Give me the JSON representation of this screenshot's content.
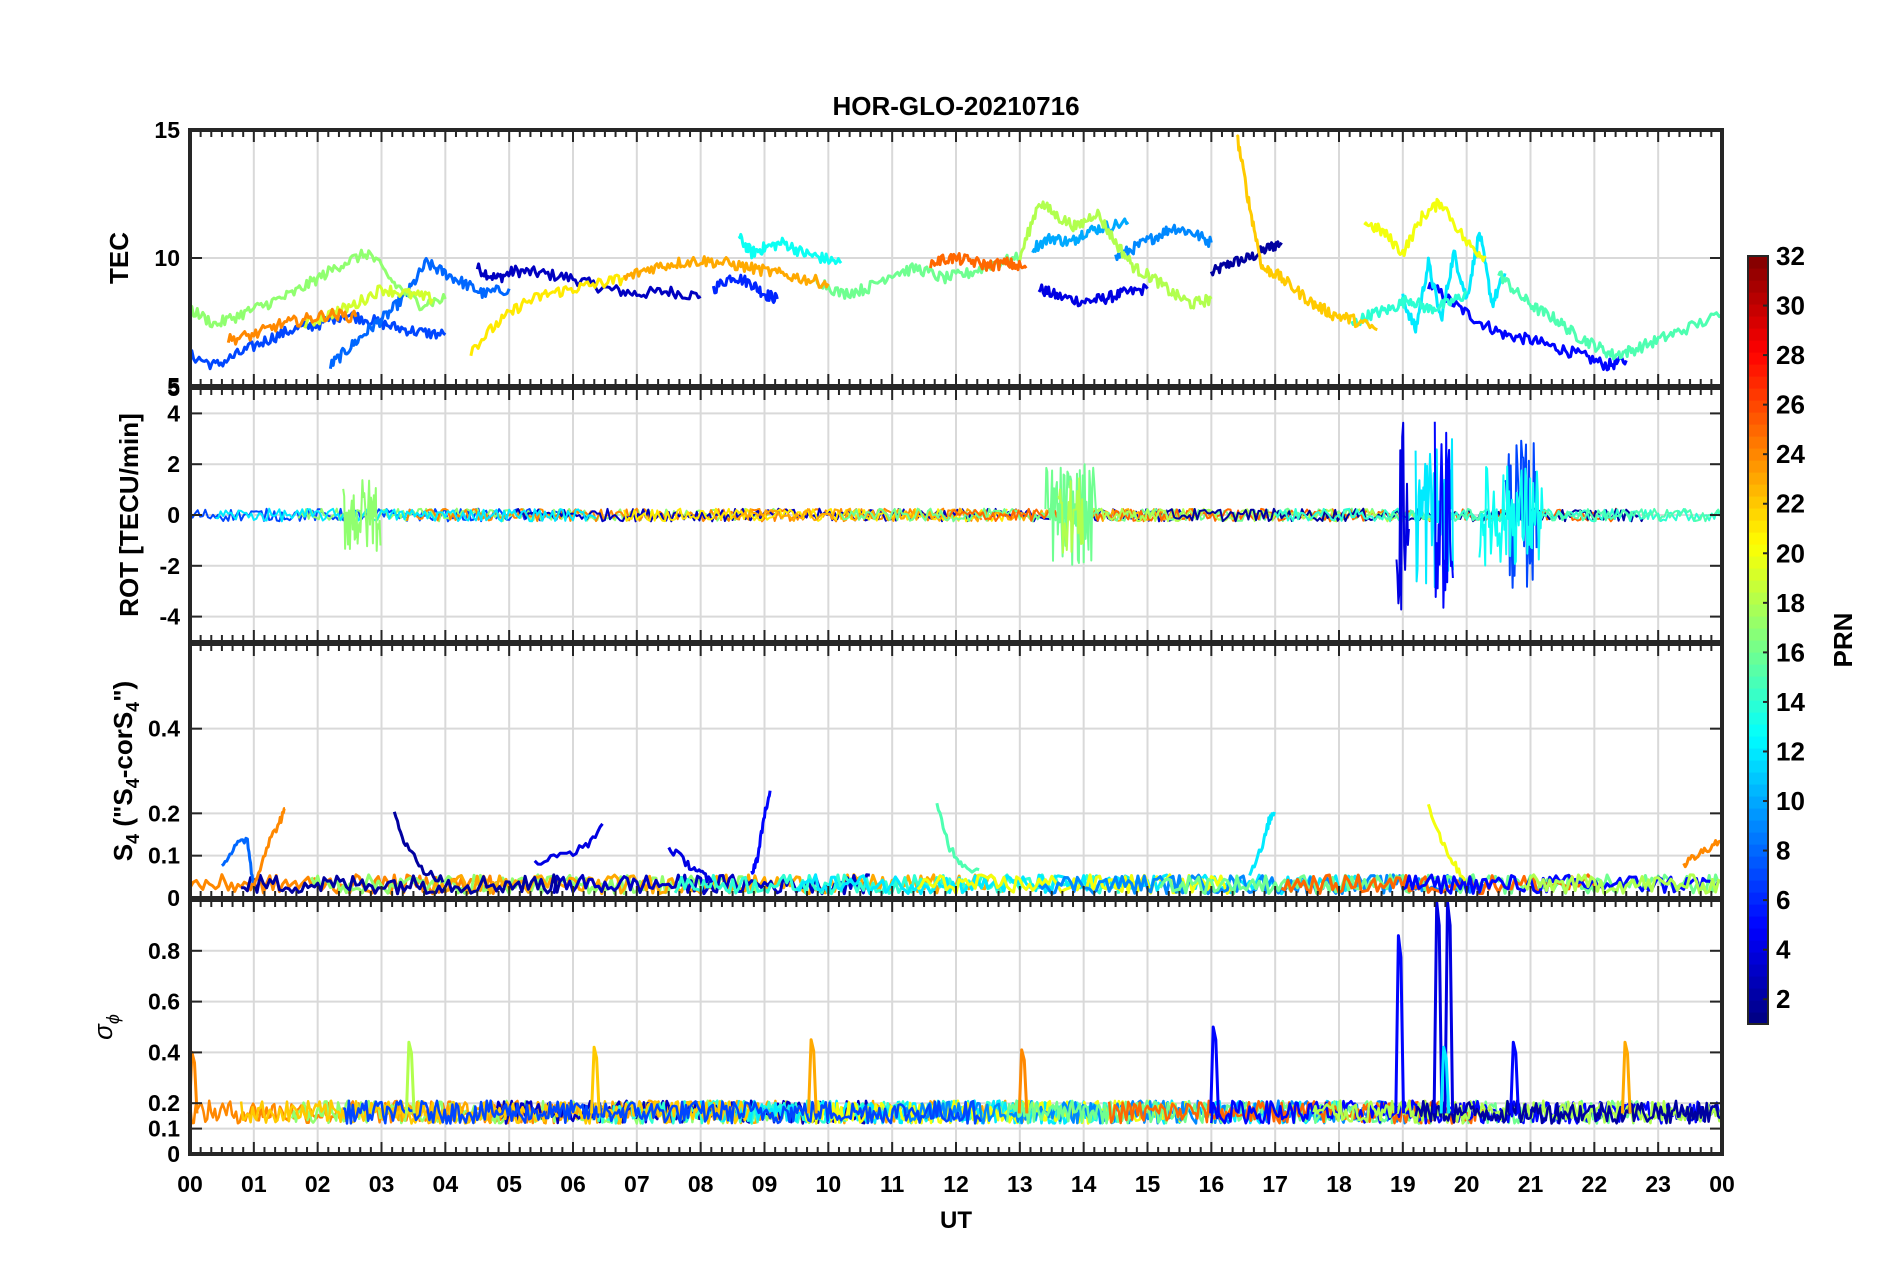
{
  "chart_data": {
    "type": "line",
    "title": "HOR-GLO-20210716",
    "xlabel": "UT",
    "x_tick_labels": [
      "00",
      "01",
      "02",
      "03",
      "04",
      "05",
      "06",
      "07",
      "08",
      "09",
      "10",
      "11",
      "12",
      "13",
      "14",
      "15",
      "16",
      "17",
      "18",
      "19",
      "20",
      "21",
      "22",
      "23",
      "00"
    ],
    "xlim": [
      0,
      24
    ],
    "panels": [
      {
        "id": "tec",
        "ylabel": "TEC",
        "ylim": [
          5,
          15
        ],
        "yticks": [
          5,
          10,
          15
        ],
        "series": [
          {
            "prn": 2,
            "x": [
              16.0,
              16.3,
              16.6,
              16.9,
              17.1
            ],
            "y": [
              9.4,
              9.8,
              10.0,
              10.4,
              10.6
            ]
          },
          {
            "prn": 3,
            "x": [
              4.5,
              4.8,
              5.1,
              5.5,
              6.0,
              6.5,
              7.0,
              7.5,
              8.0
            ],
            "y": [
              9.6,
              9.2,
              9.5,
              9.4,
              9.2,
              8.8,
              8.6,
              8.7,
              8.5
            ]
          },
          {
            "prn": 4,
            "x": [
              13.3,
              13.6,
              14.0,
              14.3,
              14.6,
              15.0
            ],
            "y": [
              8.8,
              8.5,
              8.3,
              8.4,
              8.6,
              8.8
            ]
          },
          {
            "prn": 5,
            "x": [
              19.4,
              19.8,
              20.2,
              20.6,
              21.0,
              21.4,
              21.8,
              22.2,
              22.5
            ],
            "y": [
              9.0,
              8.2,
              7.5,
              7.0,
              6.8,
              6.5,
              6.2,
              5.8,
              6.0
            ]
          },
          {
            "prn": 6,
            "x": [
              8.2,
              8.5,
              8.8,
              9.0,
              9.2
            ],
            "y": [
              8.8,
              9.3,
              9.0,
              8.6,
              8.4
            ]
          },
          {
            "prn": 7,
            "x": [
              0.0,
              0.4,
              0.8,
              1.2,
              1.6,
              2.0,
              2.4,
              2.8,
              3.2,
              3.6,
              4.0
            ],
            "y": [
              6.2,
              5.8,
              6.3,
              6.8,
              7.2,
              7.4,
              7.8,
              7.6,
              7.3,
              7.1,
              7.0
            ]
          },
          {
            "prn": 8,
            "x": [
              2.2,
              2.5,
              2.8,
              3.1,
              3.4,
              3.7,
              4.0,
              4.3,
              4.6,
              5.0
            ],
            "y": [
              5.8,
              6.5,
              7.2,
              7.8,
              8.6,
              9.8,
              9.4,
              9.0,
              8.6,
              8.8
            ]
          },
          {
            "prn": 9,
            "x": [
              14.5,
              14.8,
              15.1,
              15.4,
              15.7,
              16.0
            ],
            "y": [
              10.0,
              10.4,
              10.8,
              11.2,
              11.0,
              10.6
            ]
          },
          {
            "prn": 10,
            "x": [
              13.2,
              13.5,
              13.8,
              14.0,
              14.3,
              14.7
            ],
            "y": [
              10.4,
              10.8,
              10.6,
              11.0,
              11.2,
              11.4
            ]
          },
          {
            "prn": 12,
            "x": [
              19.0,
              19.2,
              19.4,
              19.6,
              19.8,
              20.0,
              20.2,
              20.4,
              20.6
            ],
            "y": [
              8.4,
              7.2,
              9.8,
              7.6,
              10.2,
              8.4,
              11.0,
              8.2,
              9.4
            ]
          },
          {
            "prn": 13,
            "x": [
              8.6,
              8.8,
              9.0,
              9.3,
              9.6,
              9.9,
              10.2
            ],
            "y": [
              10.8,
              10.2,
              10.4,
              10.6,
              10.2,
              10.0,
              9.8
            ]
          },
          {
            "prn": 14,
            "x": [
              18.2,
              18.5,
              18.8,
              19.1,
              19.4,
              19.7,
              20.0
            ],
            "y": [
              7.4,
              7.8,
              8.0,
              8.4,
              8.0,
              8.2,
              8.6
            ]
          },
          {
            "prn": 15,
            "x": [
              20.5,
              20.8,
              21.1,
              21.4,
              21.7,
              22.0,
              22.3,
              22.6,
              23.0,
              23.4,
              24.0
            ],
            "y": [
              9.4,
              8.6,
              8.0,
              7.6,
              7.0,
              6.6,
              6.2,
              6.4,
              6.8,
              7.2,
              7.8
            ]
          },
          {
            "prn": 16,
            "x": [
              9.8,
              10.2,
              10.6,
              11.0,
              11.4,
              11.8,
              12.2,
              12.6,
              13.0
            ],
            "y": [
              9.2,
              8.6,
              8.8,
              9.4,
              9.6,
              9.2,
              9.4,
              9.8,
              10.0
            ]
          },
          {
            "prn": 17,
            "x": [
              0.0,
              0.4,
              0.8,
              1.2,
              1.6,
              2.0,
              2.4,
              2.8,
              3.2,
              3.6,
              4.0
            ],
            "y": [
              8.0,
              7.4,
              7.8,
              8.2,
              8.6,
              9.2,
              9.8,
              10.2,
              9.0,
              8.2,
              8.4
            ]
          },
          {
            "prn": 18,
            "x": [
              13.0,
              13.3,
              13.6,
              13.9,
              14.2,
              14.5,
              14.8,
              15.1,
              15.4,
              15.7,
              16.0
            ],
            "y": [
              10.0,
              12.2,
              11.6,
              11.2,
              11.8,
              10.6,
              9.6,
              9.2,
              8.6,
              8.2,
              8.4
            ]
          },
          {
            "prn": 19,
            "x": [
              1.8,
              2.2,
              2.6,
              3.0,
              3.4,
              3.8
            ],
            "y": [
              7.4,
              7.8,
              8.2,
              8.8,
              8.6,
              8.4
            ]
          },
          {
            "prn": 20,
            "x": [
              18.4,
              18.7,
              19.0,
              19.3,
              19.6,
              20.0,
              20.3
            ],
            "y": [
              11.4,
              11.0,
              10.2,
              11.6,
              12.2,
              10.6,
              10.0
            ]
          },
          {
            "prn": 21,
            "x": [
              4.4,
              4.8,
              5.2,
              5.6,
              6.0,
              6.4,
              6.8
            ],
            "y": [
              6.4,
              7.4,
              8.2,
              8.6,
              8.8,
              9.0,
              9.2
            ]
          },
          {
            "prn": 22,
            "x": [
              16.4,
              16.6,
              16.8,
              17.0,
              17.3,
              17.6,
              17.9,
              18.2,
              18.6
            ],
            "y": [
              14.8,
              12.0,
              9.6,
              9.4,
              8.8,
              8.2,
              7.8,
              7.6,
              7.2
            ]
          },
          {
            "prn": 23,
            "x": [
              6.8,
              7.2,
              7.6,
              8.0,
              8.4,
              8.8,
              9.2,
              9.6,
              10.0
            ],
            "y": [
              9.2,
              9.6,
              9.8,
              9.9,
              9.8,
              9.6,
              9.4,
              9.2,
              9.0
            ]
          },
          {
            "prn": 24,
            "x": [
              0.6,
              1.0,
              1.4,
              1.8,
              2.2,
              2.6
            ],
            "y": [
              6.8,
              7.0,
              7.4,
              7.6,
              7.8,
              7.7
            ]
          },
          {
            "prn": 25,
            "x": [
              11.6,
              11.9,
              12.2,
              12.5,
              12.8,
              13.1
            ],
            "y": [
              9.8,
              10.0,
              9.9,
              9.7,
              9.8,
              9.6
            ]
          }
        ]
      },
      {
        "id": "rot",
        "ylabel": "ROT [TECU/min]",
        "ylim": [
          -5,
          5
        ],
        "yticks": [
          -4,
          -2,
          0,
          2,
          4
        ],
        "tick_labels": [
          "-4",
          "-2",
          "0",
          "2",
          "4"
        ],
        "top_label": "5",
        "bursts": [
          {
            "prn": 4,
            "t0": 18.9,
            "t1": 19.1,
            "amp": 4.2
          },
          {
            "prn": 12,
            "t0": 19.2,
            "t1": 19.8,
            "amp": 3.0
          },
          {
            "prn": 5,
            "t0": 19.5,
            "t1": 19.8,
            "amp": -3.7
          },
          {
            "prn": 7,
            "t0": 20.6,
            "t1": 21.1,
            "amp": 3.0
          },
          {
            "prn": 13,
            "t0": 20.2,
            "t1": 21.2,
            "amp": -2.0
          },
          {
            "prn": 16,
            "t0": 13.4,
            "t1": 14.2,
            "amp": -2.0
          },
          {
            "prn": 17,
            "t0": 2.4,
            "t1": 3.0,
            "amp": -1.5
          },
          {
            "prn": 18,
            "t0": 13.6,
            "t1": 14.0,
            "amp": 1.5
          }
        ]
      },
      {
        "id": "s4",
        "ylabel": "S",
        "ylabel_parts": [
          "S",
          "4",
          " (\"S",
          "4",
          "-corS",
          "4",
          "\")"
        ],
        "ylim": [
          0,
          0.6
        ],
        "yticks": [
          0,
          0.1,
          0.2,
          0.4
        ],
        "tick_labels": [
          "0",
          "0.1",
          "0.2",
          "0.4"
        ],
        "events": [
          {
            "prn": 8,
            "x": [
              0.5,
              0.7,
              0.9,
              1.0
            ],
            "y": [
              0.08,
              0.12,
              0.14,
              0.02
            ]
          },
          {
            "prn": 24,
            "x": [
              1.0,
              1.2,
              1.4,
              1.5
            ],
            "y": [
              0.03,
              0.12,
              0.18,
              0.21
            ]
          },
          {
            "prn": 2,
            "x": [
              3.2,
              3.4,
              3.7,
              4.0
            ],
            "y": [
              0.2,
              0.12,
              0.06,
              0.04
            ]
          },
          {
            "prn": 4,
            "x": [
              5.4,
              5.8,
              6.2,
              6.5
            ],
            "y": [
              0.08,
              0.1,
              0.12,
              0.18
            ]
          },
          {
            "prn": 4,
            "x": [
              7.5,
              7.8,
              8.0,
              8.2
            ],
            "y": [
              0.12,
              0.08,
              0.06,
              0.03
            ]
          },
          {
            "prn": 5,
            "x": [
              8.8,
              8.9,
              9.0,
              9.1
            ],
            "y": [
              0.06,
              0.1,
              0.2,
              0.25
            ]
          },
          {
            "prn": 15,
            "x": [
              11.7,
              11.9,
              12.1,
              12.4
            ],
            "y": [
              0.22,
              0.12,
              0.08,
              0.06
            ]
          },
          {
            "prn": 12,
            "x": [
              16.6,
              16.8,
              16.9,
              17.0
            ],
            "y": [
              0.06,
              0.12,
              0.18,
              0.21
            ]
          },
          {
            "prn": 20,
            "x": [
              19.4,
              19.6,
              19.8,
              20.0
            ],
            "y": [
              0.22,
              0.14,
              0.08,
              0.04
            ]
          },
          {
            "prn": 24,
            "x": [
              23.4,
              23.6,
              23.8,
              24.0
            ],
            "y": [
              0.08,
              0.1,
              0.12,
              0.14
            ]
          }
        ]
      },
      {
        "id": "sigma",
        "ylabel": "σ",
        "ylabel_sub": "ϕ",
        "ylim": [
          0,
          1
        ],
        "yticks": [
          0,
          0.1,
          0.2,
          0.4,
          0.6,
          0.8
        ],
        "tick_labels": [
          "0",
          "0.1",
          "0.2",
          "0.4",
          "0.6",
          "0.8"
        ],
        "spikes": [
          {
            "prn": 5,
            "x": 18.95,
            "y": 0.86
          },
          {
            "prn": 4,
            "x": 19.55,
            "y": 1.0
          },
          {
            "prn": 4,
            "x": 19.72,
            "y": 1.0
          },
          {
            "prn": 12,
            "x": 19.66,
            "y": 0.42
          },
          {
            "prn": 5,
            "x": 20.75,
            "y": 0.44
          },
          {
            "prn": 5,
            "x": 16.05,
            "y": 0.5
          },
          {
            "prn": 18,
            "x": 3.45,
            "y": 0.44
          },
          {
            "prn": 22,
            "x": 6.35,
            "y": 0.42
          },
          {
            "prn": 23,
            "x": 9.75,
            "y": 0.45
          },
          {
            "prn": 24,
            "x": 13.05,
            "y": 0.41
          },
          {
            "prn": 23,
            "x": 22.5,
            "y": 0.44
          },
          {
            "prn": 24,
            "x": 0.05,
            "y": 0.4
          }
        ]
      }
    ],
    "colorbar": {
      "label": "PRN",
      "range": [
        1,
        32
      ],
      "ticks": [
        2,
        4,
        6,
        8,
        10,
        12,
        14,
        16,
        18,
        20,
        22,
        24,
        26,
        28,
        30,
        32
      ],
      "colormap": "jet"
    },
    "grid": true
  }
}
